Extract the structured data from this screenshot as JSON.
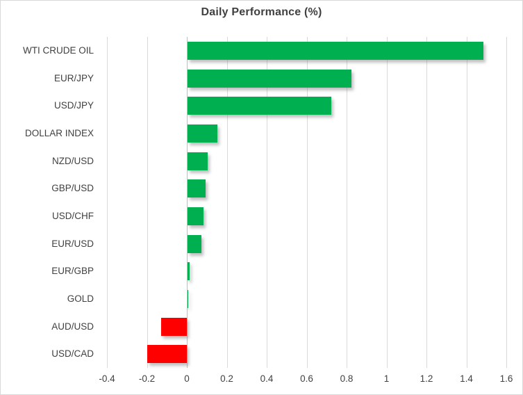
{
  "chart_data": {
    "type": "bar",
    "orientation": "horizontal",
    "title": "Daily Performance (%)",
    "categories": [
      "WTI CRUDE OIL",
      "EUR/JPY",
      "USD/JPY",
      "DOLLAR INDEX",
      "NZD/USD",
      "GBP/USD",
      "USD/CHF",
      "EUR/USD",
      "EUR/GBP",
      "GOLD",
      "AUD/USD",
      "USD/CAD"
    ],
    "values": [
      1.48,
      0.82,
      0.72,
      0.15,
      0.1,
      0.09,
      0.08,
      0.07,
      0.01,
      0.0,
      -0.13,
      -0.2
    ],
    "xlabel": "",
    "ylabel": "",
    "xlim": [
      -0.4,
      1.6
    ],
    "x_tick_values": [
      -0.4,
      -0.2,
      0,
      0.2,
      0.4,
      0.6,
      0.8,
      1,
      1.2,
      1.4,
      1.6
    ],
    "x_tick_labels": [
      "-0.4",
      "-0.2",
      "0",
      "0.2",
      "0.4",
      "0.6",
      "0.8",
      "1",
      "1.2",
      "1.4",
      "1.6"
    ],
    "grid": true,
    "legend": false,
    "colors": {
      "positive_bar": "#00B050",
      "negative_bar": "#FF0000",
      "gridline": "#D9D9D9",
      "zero_axis_line": "#BFBFBF",
      "label_text": "#404040",
      "title_text": "#404040",
      "chart_border": "#D9D9D9",
      "background": "#FFFFFF"
    }
  }
}
